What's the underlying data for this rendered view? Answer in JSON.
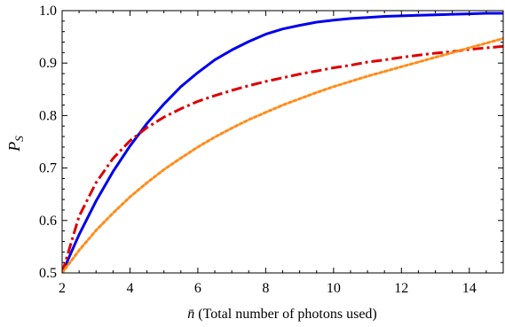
{
  "chart_data": {
    "type": "line",
    "xlabel_var": "n̄",
    "xlabel_text": " (Total number of photons used)",
    "ylabel_main": "P",
    "ylabel_sub": "S",
    "xlim": [
      2,
      15
    ],
    "ylim": [
      0.5,
      1.0
    ],
    "xticks": [
      2,
      4,
      6,
      8,
      10,
      12,
      14
    ],
    "xtick_labels": [
      "2",
      "4",
      "6",
      "8",
      "10",
      "12",
      "14"
    ],
    "yticks": [
      0.5,
      0.6,
      0.7,
      0.8,
      0.9,
      1.0
    ],
    "ytick_labels": [
      "0.5",
      "0.6",
      "0.7",
      "0.8",
      "0.9",
      "1.0"
    ],
    "grid": false,
    "series": [
      {
        "color": "#0000ee",
        "style": "solid",
        "x": [
          2,
          2.5,
          3,
          3.5,
          4,
          4.5,
          5,
          5.5,
          6,
          6.5,
          7,
          7.5,
          8,
          8.5,
          9,
          9.5,
          10,
          10.5,
          11,
          11.5,
          12,
          12.5,
          13,
          13.5,
          14,
          14.5,
          15
        ],
        "y": [
          0.5,
          0.573,
          0.637,
          0.693,
          0.742,
          0.785,
          0.822,
          0.855,
          0.882,
          0.906,
          0.925,
          0.941,
          0.955,
          0.965,
          0.972,
          0.978,
          0.982,
          0.985,
          0.987,
          0.989,
          0.99,
          0.991,
          0.992,
          0.993,
          0.994,
          0.995,
          0.995
        ]
      },
      {
        "color": "#dd0000",
        "style": "dashdot",
        "x": [
          2,
          2.5,
          3,
          3.5,
          4,
          4.5,
          5,
          5.5,
          6,
          6.5,
          7,
          7.5,
          8,
          8.5,
          9,
          9.5,
          10,
          10.5,
          11,
          11.5,
          12,
          12.5,
          13,
          13.5,
          14,
          14.5,
          15
        ],
        "y": [
          0.5,
          0.608,
          0.672,
          0.718,
          0.752,
          0.777,
          0.797,
          0.813,
          0.827,
          0.838,
          0.848,
          0.857,
          0.865,
          0.872,
          0.879,
          0.885,
          0.891,
          0.896,
          0.902,
          0.906,
          0.911,
          0.915,
          0.919,
          0.922,
          0.926,
          0.929,
          0.932
        ]
      },
      {
        "color": "#ff8c1a",
        "style": "dotted",
        "x": [
          2,
          2.5,
          3,
          3.5,
          4,
          4.5,
          5,
          5.5,
          6,
          6.5,
          7,
          7.5,
          8,
          8.5,
          9,
          9.5,
          10,
          10.5,
          11,
          11.5,
          12,
          12.5,
          13,
          13.5,
          14,
          14.5,
          15
        ],
        "y": [
          0.5,
          0.543,
          0.581,
          0.614,
          0.645,
          0.672,
          0.697,
          0.719,
          0.74,
          0.759,
          0.776,
          0.792,
          0.806,
          0.82,
          0.832,
          0.844,
          0.855,
          0.865,
          0.875,
          0.884,
          0.893,
          0.902,
          0.911,
          0.92,
          0.929,
          0.938,
          0.947
        ]
      }
    ]
  }
}
